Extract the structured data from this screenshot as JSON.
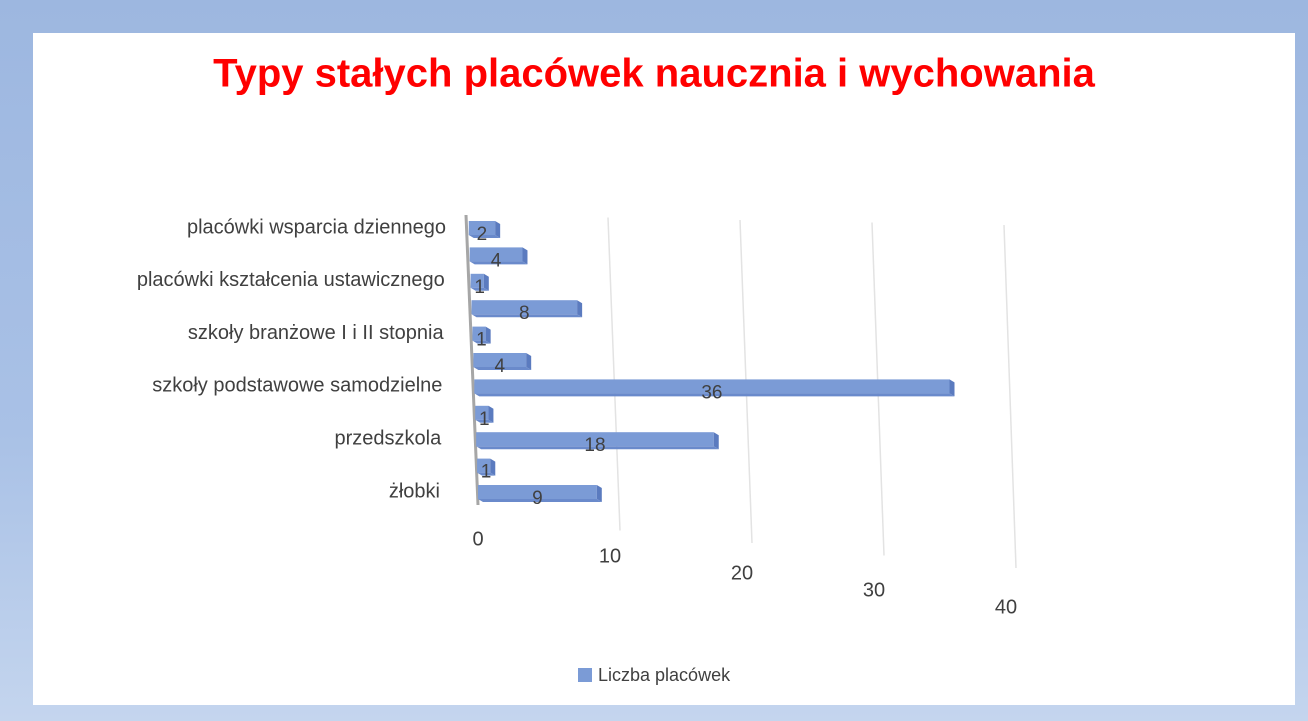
{
  "chart_data": {
    "type": "bar",
    "orientation": "horizontal",
    "title": "Typy stałych placówek naucznia i wychowania",
    "categories": [
      "żłobki",
      null,
      "przedszkola",
      null,
      "szkoły podstawowe samodzielne",
      null,
      "szkoły branżowe I i II stopnia",
      null,
      "placówki kształcenia ustawicznego",
      null,
      "placówki wsparcia dziennego"
    ],
    "series": [
      {
        "name": "Liczba placówek",
        "color": "#7b9bd6",
        "values": [
          9,
          1,
          18,
          1,
          36,
          4,
          1,
          8,
          1,
          4,
          2
        ]
      }
    ],
    "xlim": [
      0,
      40
    ],
    "xticks": [
      0,
      10,
      20,
      30,
      40
    ],
    "grid": true
  }
}
